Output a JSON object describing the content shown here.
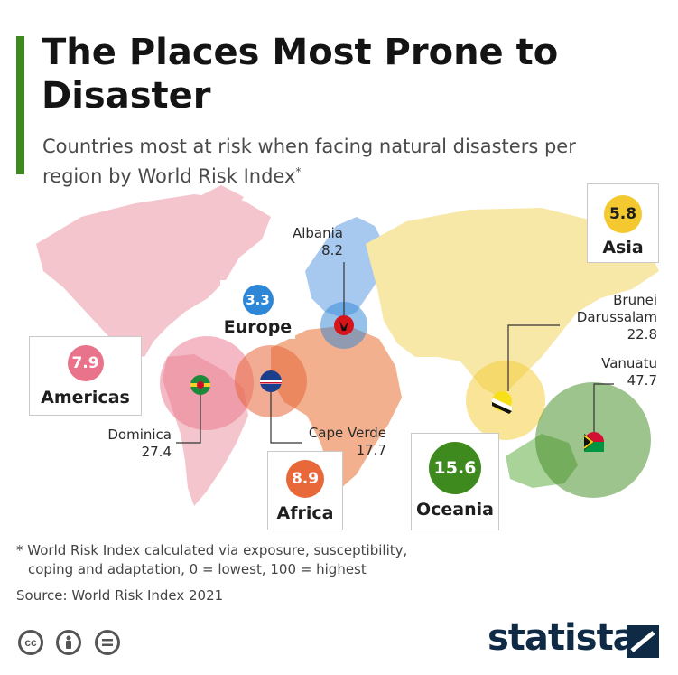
{
  "header": {
    "title": "The Places Most Prone to Disaster",
    "subtitle": "Countries most at risk when facing natural disasters per region by World Risk Index",
    "subtitle_marker": "*"
  },
  "regions": {
    "americas": {
      "value": "7.9",
      "name": "Americas",
      "color": "#e9738a"
    },
    "europe": {
      "value": "3.3",
      "name": "Europe",
      "color": "#2e86d6"
    },
    "africa": {
      "value": "8.9",
      "name": "Africa",
      "color": "#e8683a"
    },
    "asia": {
      "value": "5.8",
      "name": "Asia",
      "color": "#f3c92f"
    },
    "oceania": {
      "value": "15.6",
      "name": "Oceania",
      "color": "#3e8a1e"
    }
  },
  "countries": {
    "albania": {
      "name": "Albania",
      "value": "8.2"
    },
    "dominica": {
      "name": "Dominica",
      "value": "27.4"
    },
    "cape_verde": {
      "name": "Cape Verde",
      "value": "17.7"
    },
    "brunei": {
      "name_line1": "Brunei",
      "name_line2": "Darussalam",
      "value": "22.8"
    },
    "vanuatu": {
      "name": "Vanuatu",
      "value": "47.7"
    }
  },
  "footer": {
    "footnote_line1": "* World Risk Index calculated via exposure, susceptibility,",
    "footnote_line2": "coping and adaptation, 0 = lowest, 100 = highest",
    "source": "Source: World Risk Index 2021",
    "brand": "statista",
    "license_icons": [
      "cc-icon",
      "attribution-icon",
      "no-derivatives-icon"
    ]
  }
}
